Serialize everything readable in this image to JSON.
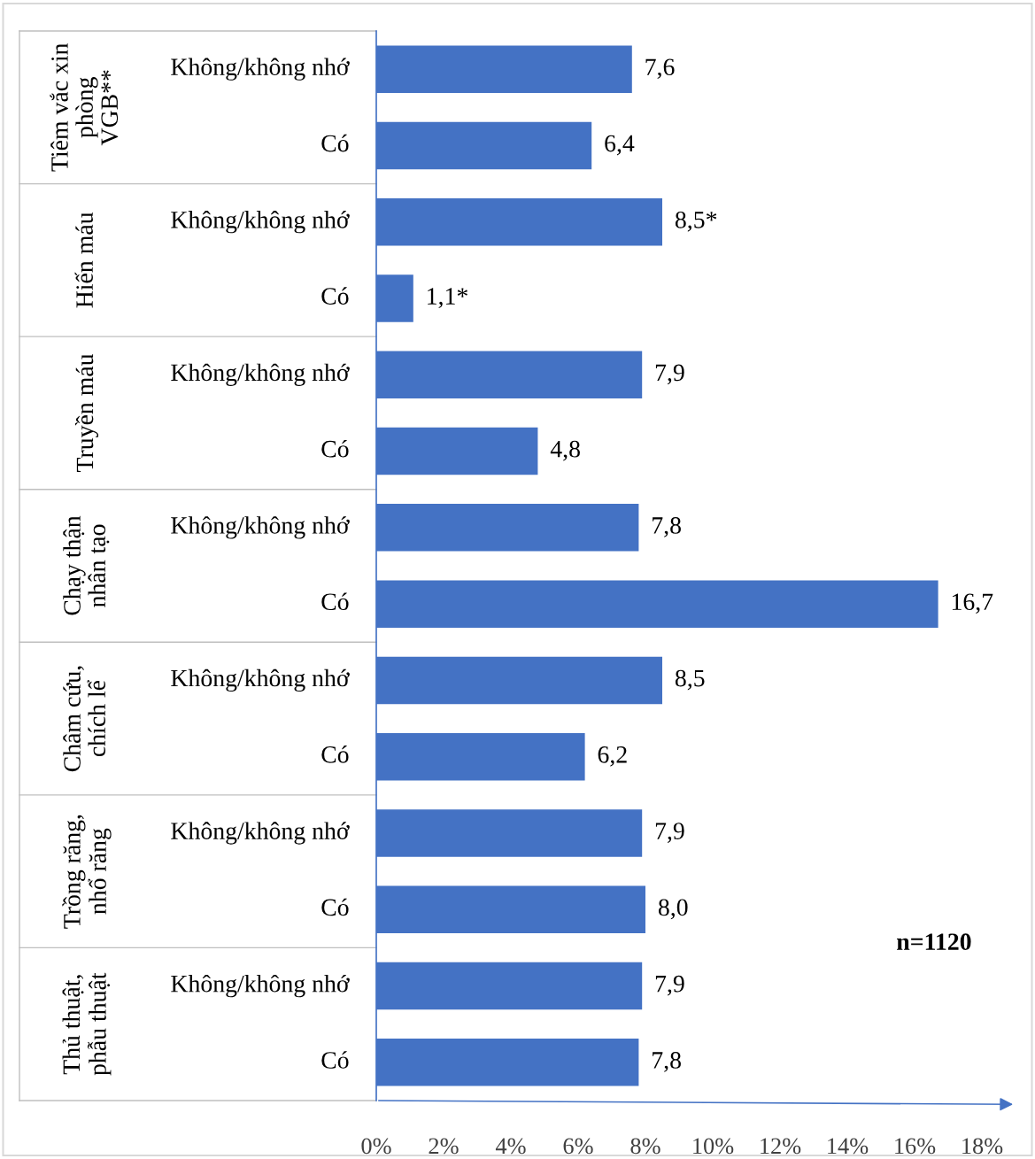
{
  "chart_data": {
    "type": "bar",
    "orientation": "horizontal",
    "categories": [
      "Không/không nhớ",
      "Có",
      "Không/không nhớ",
      "Có",
      "Không/không nhớ",
      "Có",
      "Không/không nhớ",
      "Có",
      "Không/không nhớ",
      "Có",
      "Không/không nhớ",
      "Có",
      "Không/không nhớ",
      "Có"
    ],
    "values": [
      7.6,
      6.4,
      8.5,
      1.1,
      7.9,
      4.8,
      7.8,
      16.7,
      8.5,
      6.2,
      7.9,
      8.0,
      7.9,
      7.8
    ],
    "value_labels": [
      "7,6",
      "6,4",
      "8,5*",
      "1,1*",
      "7,9",
      "4,8",
      "7,8",
      "16,7",
      "8,5",
      "6,2",
      "7,9",
      "8,0",
      "7,9",
      "7,8"
    ],
    "color": "#4472c4",
    "xlim": [
      0,
      18
    ],
    "xticks": [
      {
        "value": 0,
        "label": "0%"
      },
      {
        "value": 2,
        "label": "2%"
      },
      {
        "value": 4,
        "label": "4%"
      },
      {
        "value": 6,
        "label": "6%"
      },
      {
        "value": 8,
        "label": "8%"
      },
      {
        "value": 10,
        "label": "10%"
      },
      {
        "value": 12,
        "label": "12%"
      },
      {
        "value": 14,
        "label": "14%"
      },
      {
        "value": 16,
        "label": "16%"
      },
      {
        "value": 18,
        "label": "18%"
      }
    ],
    "grid": false,
    "legend": false,
    "annotations": [
      "Tiêm vắc xin\nphòng\nVGB**",
      "Hiến máu",
      "Truyền máu",
      "Chạy thận\nnhân tạo",
      "Châm cứu,\nchích lể",
      "Trồng răng,\nnhổ răng",
      "Thủ thuật,\nphẫu thuật",
      "n=1120"
    ]
  }
}
